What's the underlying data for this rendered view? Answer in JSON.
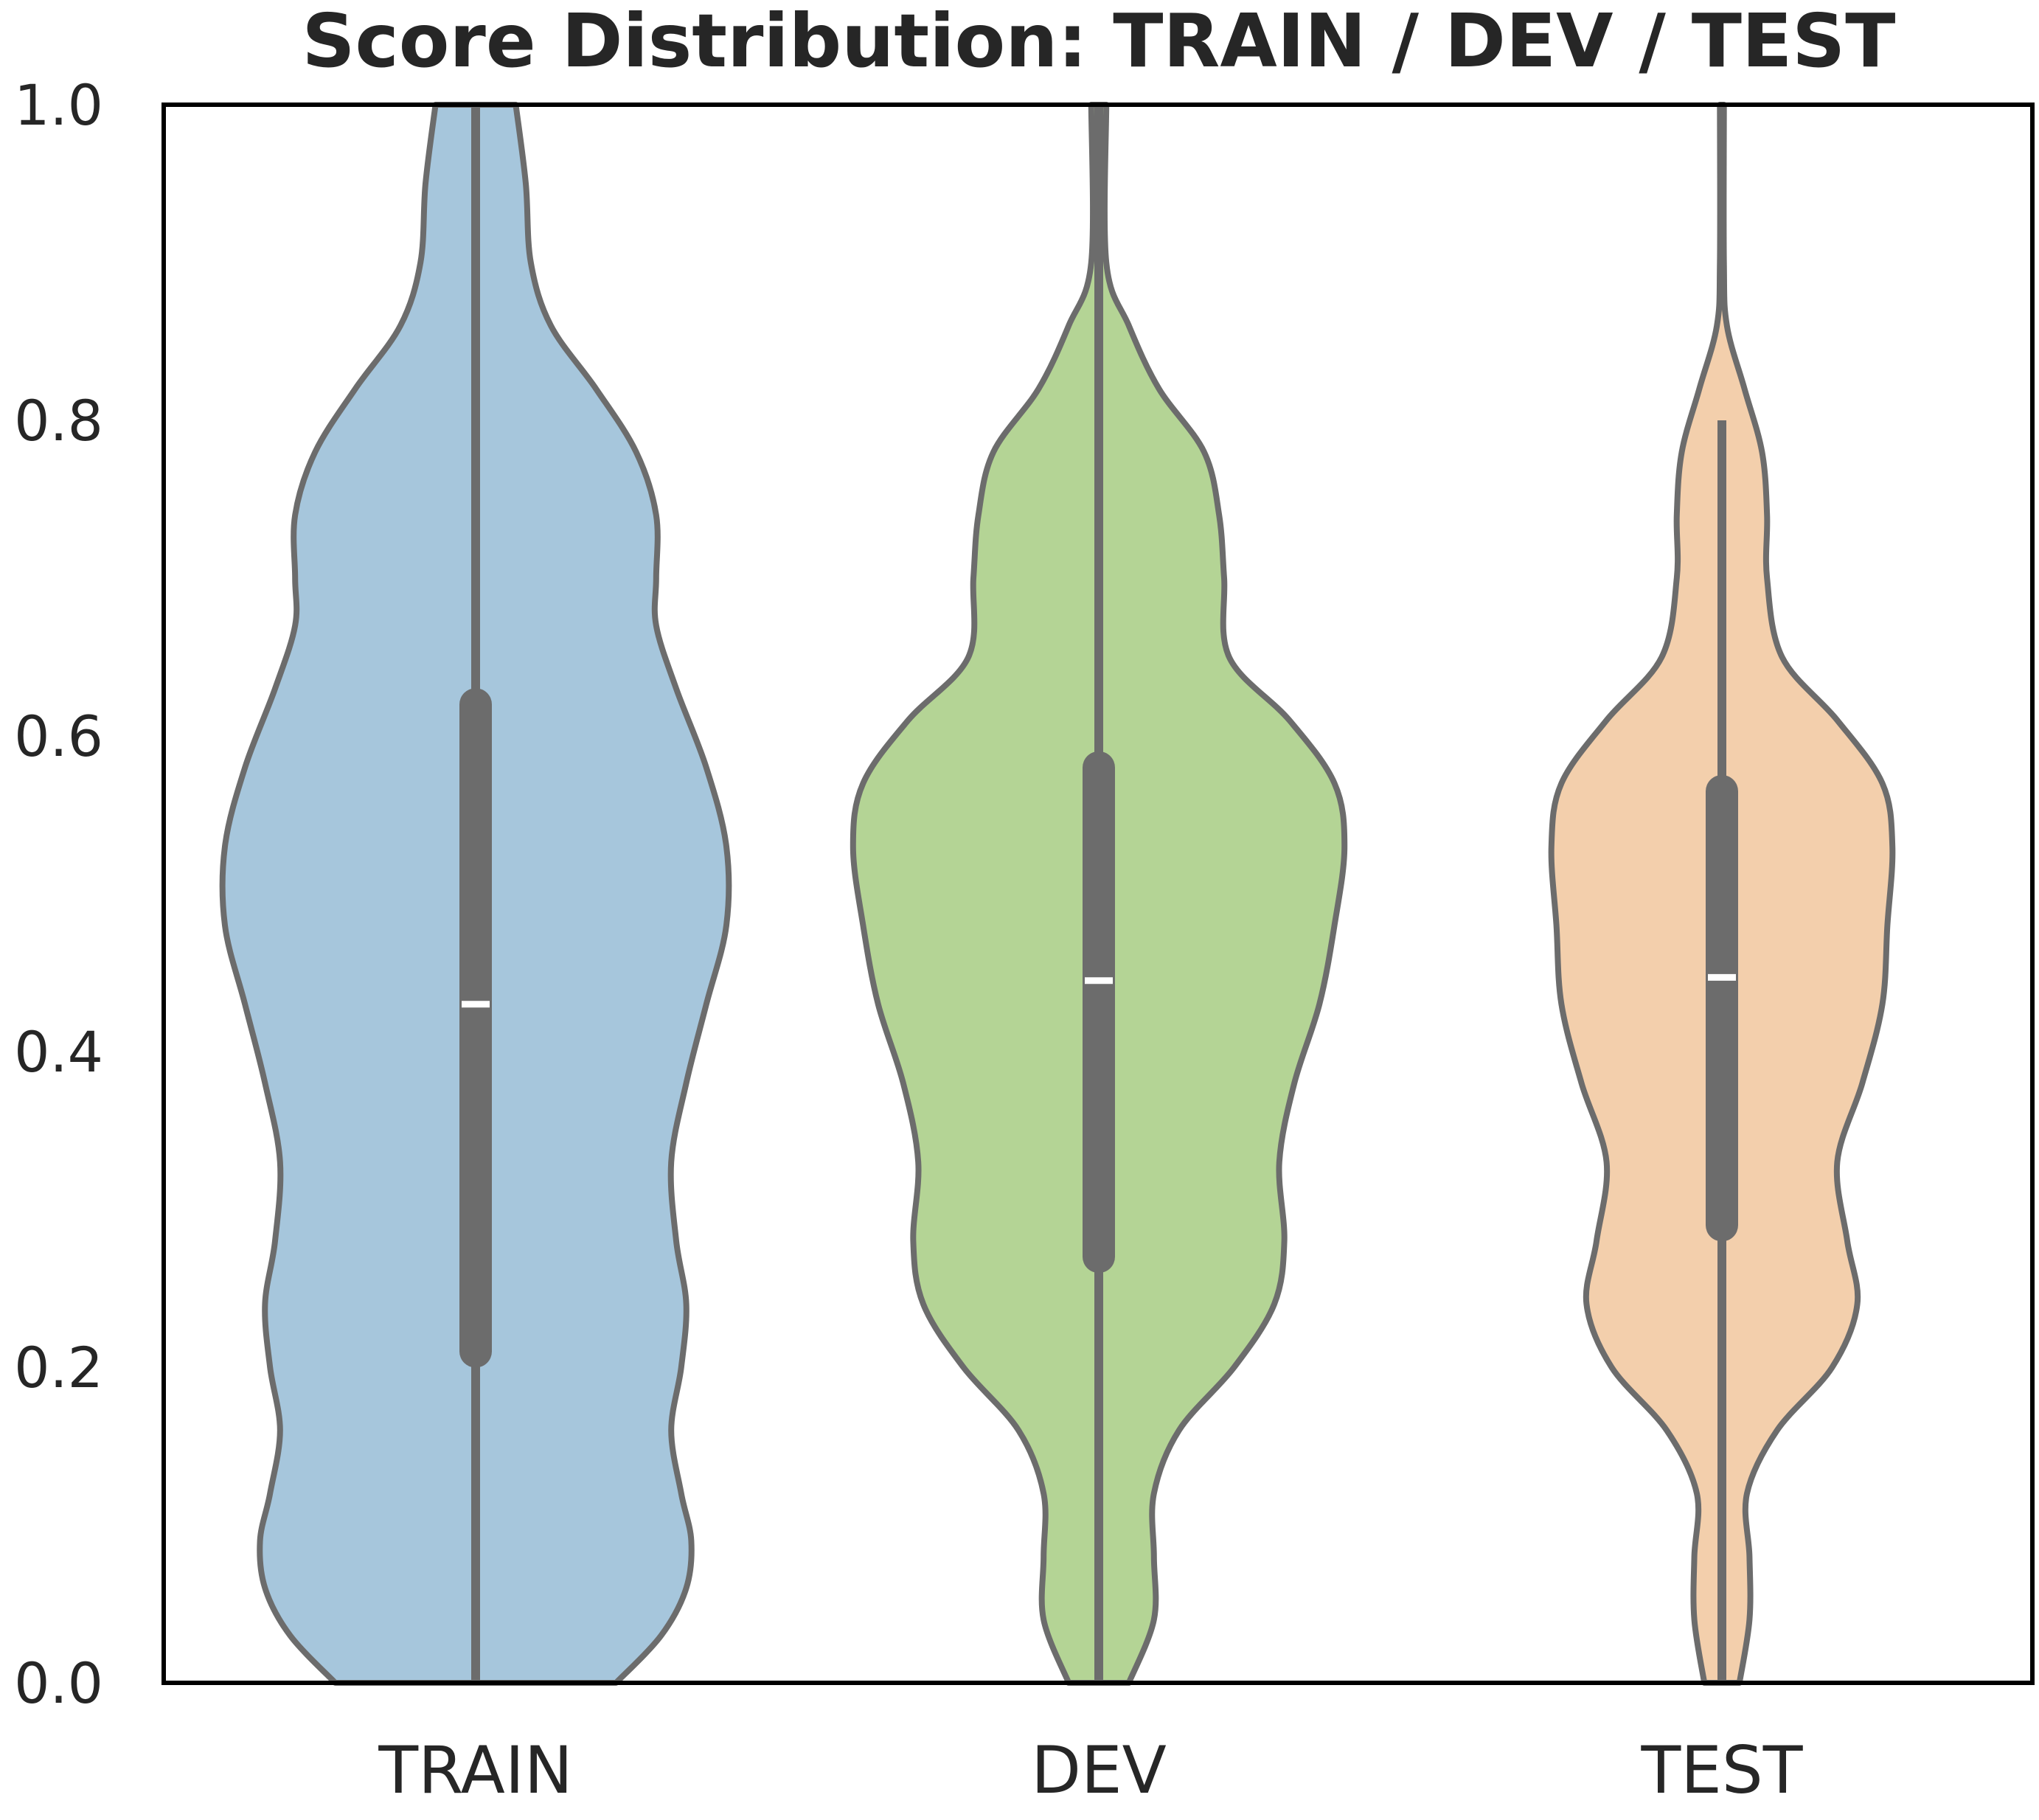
{
  "chart_data": {
    "type": "violin",
    "title": "Score Distribution: TRAIN / DEV / TEST",
    "xlabel": "",
    "ylabel": "",
    "ylim": [
      0.0,
      1.0
    ],
    "yticks": [
      "0.0",
      "0.2",
      "0.4",
      "0.6",
      "0.8",
      "1.0"
    ],
    "grid": false,
    "categories": [
      "TRAIN",
      "DEV",
      "TEST"
    ],
    "series": [
      {
        "name": "TRAIN",
        "color": "#a6c6dc",
        "median": 0.43,
        "q1": 0.21,
        "q3": 0.62,
        "whisker_low": 0.0,
        "whisker_high": 1.0,
        "density": [
          [
            0.0,
            0.28
          ],
          [
            0.03,
            0.37
          ],
          [
            0.06,
            0.42
          ],
          [
            0.09,
            0.43
          ],
          [
            0.12,
            0.41
          ],
          [
            0.16,
            0.39
          ],
          [
            0.2,
            0.41
          ],
          [
            0.24,
            0.42
          ],
          [
            0.28,
            0.4
          ],
          [
            0.33,
            0.39
          ],
          [
            0.38,
            0.42
          ],
          [
            0.43,
            0.46
          ],
          [
            0.48,
            0.5
          ],
          [
            0.53,
            0.5
          ],
          [
            0.58,
            0.46
          ],
          [
            0.63,
            0.4
          ],
          [
            0.67,
            0.36
          ],
          [
            0.7,
            0.36
          ],
          [
            0.74,
            0.36
          ],
          [
            0.78,
            0.32
          ],
          [
            0.82,
            0.24
          ],
          [
            0.86,
            0.15
          ],
          [
            0.9,
            0.11
          ],
          [
            0.95,
            0.1
          ],
          [
            1.0,
            0.08
          ]
        ]
      },
      {
        "name": "DEV",
        "color": "#b4d495",
        "median": 0.445,
        "q1": 0.27,
        "q3": 0.58,
        "whisker_low": 0.0,
        "whisker_high": 1.0,
        "density": [
          [
            0.0,
            0.06
          ],
          [
            0.04,
            0.11
          ],
          [
            0.08,
            0.11
          ],
          [
            0.12,
            0.11
          ],
          [
            0.16,
            0.16
          ],
          [
            0.2,
            0.27
          ],
          [
            0.24,
            0.35
          ],
          [
            0.28,
            0.37
          ],
          [
            0.33,
            0.36
          ],
          [
            0.38,
            0.39
          ],
          [
            0.43,
            0.44
          ],
          [
            0.48,
            0.47
          ],
          [
            0.53,
            0.49
          ],
          [
            0.57,
            0.47
          ],
          [
            0.61,
            0.38
          ],
          [
            0.65,
            0.26
          ],
          [
            0.7,
            0.25
          ],
          [
            0.74,
            0.24
          ],
          [
            0.78,
            0.21
          ],
          [
            0.82,
            0.12
          ],
          [
            0.86,
            0.06
          ],
          [
            0.9,
            0.015
          ],
          [
            1.0,
            0.015
          ]
        ]
      },
      {
        "name": "TEST",
        "color": "#f3cfac",
        "median": 0.447,
        "q1": 0.29,
        "q3": 0.565,
        "whisker_low": 0.0,
        "whisker_high": 0.8,
        "density": [
          [
            0.0,
            0.035
          ],
          [
            0.04,
            0.055
          ],
          [
            0.08,
            0.055
          ],
          [
            0.12,
            0.05
          ],
          [
            0.16,
            0.11
          ],
          [
            0.2,
            0.22
          ],
          [
            0.24,
            0.27
          ],
          [
            0.28,
            0.25
          ],
          [
            0.33,
            0.23
          ],
          [
            0.38,
            0.28
          ],
          [
            0.43,
            0.32
          ],
          [
            0.48,
            0.33
          ],
          [
            0.53,
            0.34
          ],
          [
            0.57,
            0.32
          ],
          [
            0.61,
            0.23
          ],
          [
            0.65,
            0.12
          ],
          [
            0.7,
            0.09
          ],
          [
            0.74,
            0.09
          ],
          [
            0.78,
            0.08
          ],
          [
            0.82,
            0.045
          ],
          [
            0.86,
            0.01
          ],
          [
            0.9,
            0.004
          ],
          [
            1.0,
            0.004
          ]
        ]
      }
    ]
  }
}
